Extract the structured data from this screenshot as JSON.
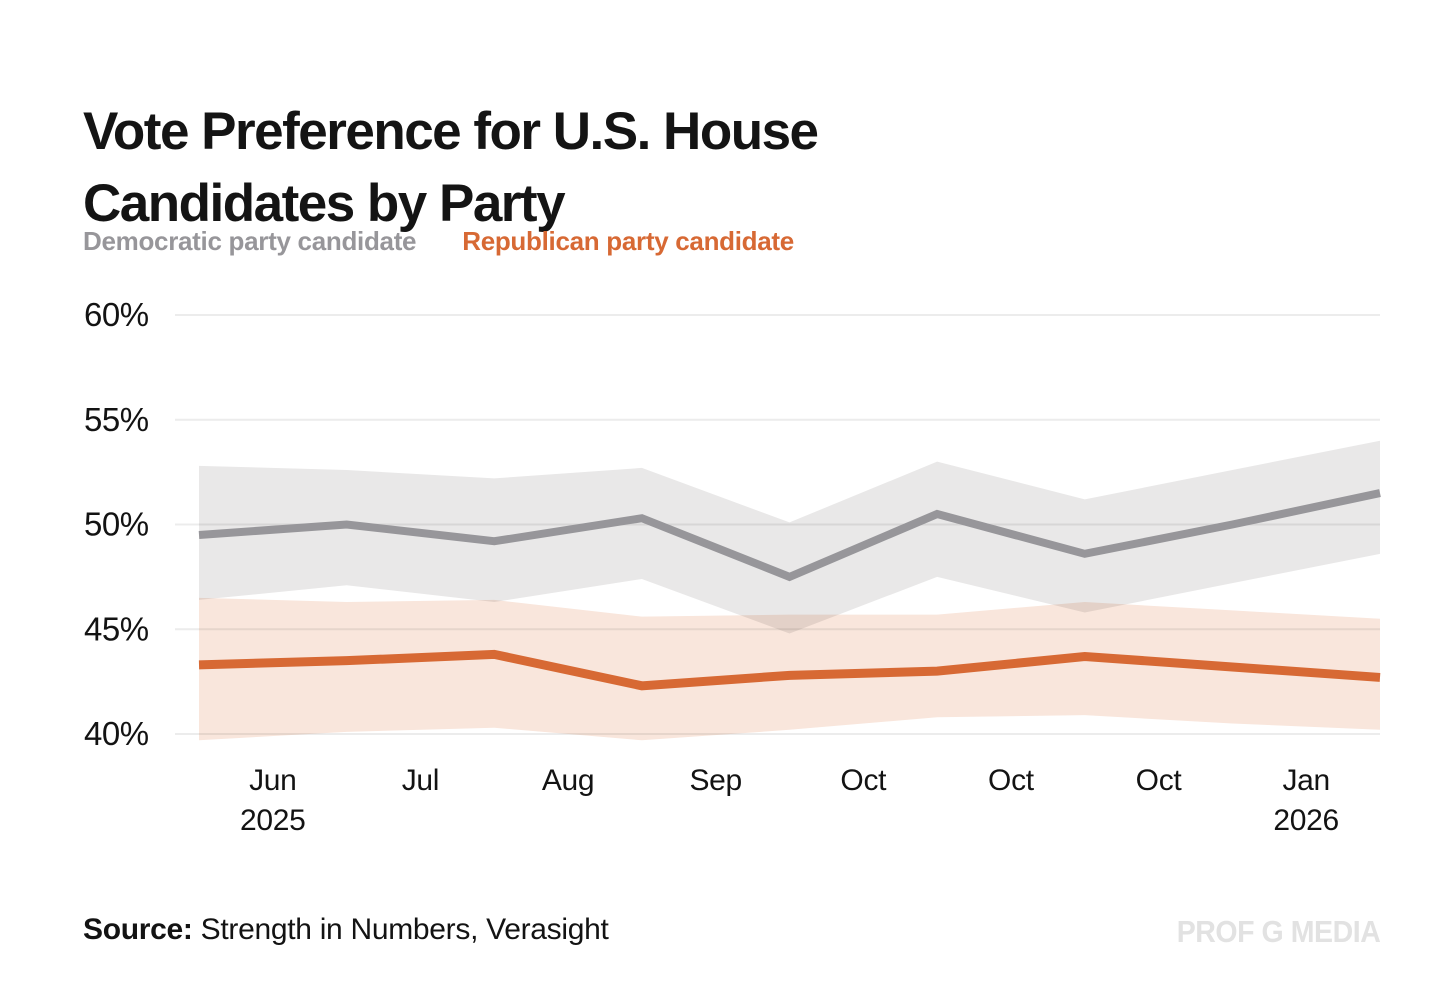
{
  "header": {
    "title": "Vote Preference for U.S. House Candidates by Party"
  },
  "footer": {
    "source_label": "Source:",
    "source_text": " Strength in Numbers, Verasight",
    "watermark": "PROF G MEDIA"
  },
  "colors": {
    "democrat_line": "#97969a",
    "democrat_band": "#e9e8e8",
    "republican_line": "#d76934",
    "republican_band": "#f9e6dc",
    "gridline": "#ececec",
    "axis_text": "#131313",
    "watermark_text": "#e2e2e2"
  },
  "chart_data": {
    "type": "line",
    "title": "Vote Preference for U.S. House Candidates by Party",
    "grid": "horizontal",
    "legend_position": "top-left",
    "ylim": [
      39.5,
      60.5
    ],
    "y_ticks": [
      {
        "label": "60%",
        "value": 60
      },
      {
        "label": "55%",
        "value": 55
      },
      {
        "label": "50%",
        "value": 50
      },
      {
        "label": "45%",
        "value": 45
      },
      {
        "label": "40%",
        "value": 40
      }
    ],
    "x_tick_labels": [
      "Jun|2025",
      "Jul",
      "Aug",
      "Sep",
      "Oct",
      "Oct",
      "Oct",
      "Jan|2026"
    ],
    "x_labels_between_points": true,
    "n_points": 9,
    "series": [
      {
        "name": "Democratic party candidate",
        "color": "#97969a",
        "band_color": "#e9e8e8",
        "values": [
          49.5,
          50.0,
          49.2,
          50.3,
          47.5,
          50.5,
          48.6,
          50.0,
          51.5
        ],
        "band_upper": [
          52.8,
          52.6,
          52.2,
          52.7,
          50.1,
          53.0,
          51.2,
          52.6,
          54.0
        ],
        "band_lower": [
          46.4,
          47.1,
          46.3,
          47.4,
          44.8,
          47.5,
          45.8,
          47.2,
          48.6
        ]
      },
      {
        "name": "Republican party candidate",
        "color": "#d76934",
        "band_color": "#f9e6dc",
        "values": [
          43.3,
          43.5,
          43.8,
          42.3,
          42.8,
          43.0,
          43.7,
          43.2,
          42.7
        ],
        "band_upper": [
          46.5,
          46.3,
          46.4,
          45.6,
          45.7,
          45.7,
          46.3,
          45.9,
          45.5
        ],
        "band_lower": [
          39.7,
          40.1,
          40.3,
          39.7,
          40.2,
          40.8,
          40.9,
          40.5,
          40.2
        ]
      }
    ]
  }
}
